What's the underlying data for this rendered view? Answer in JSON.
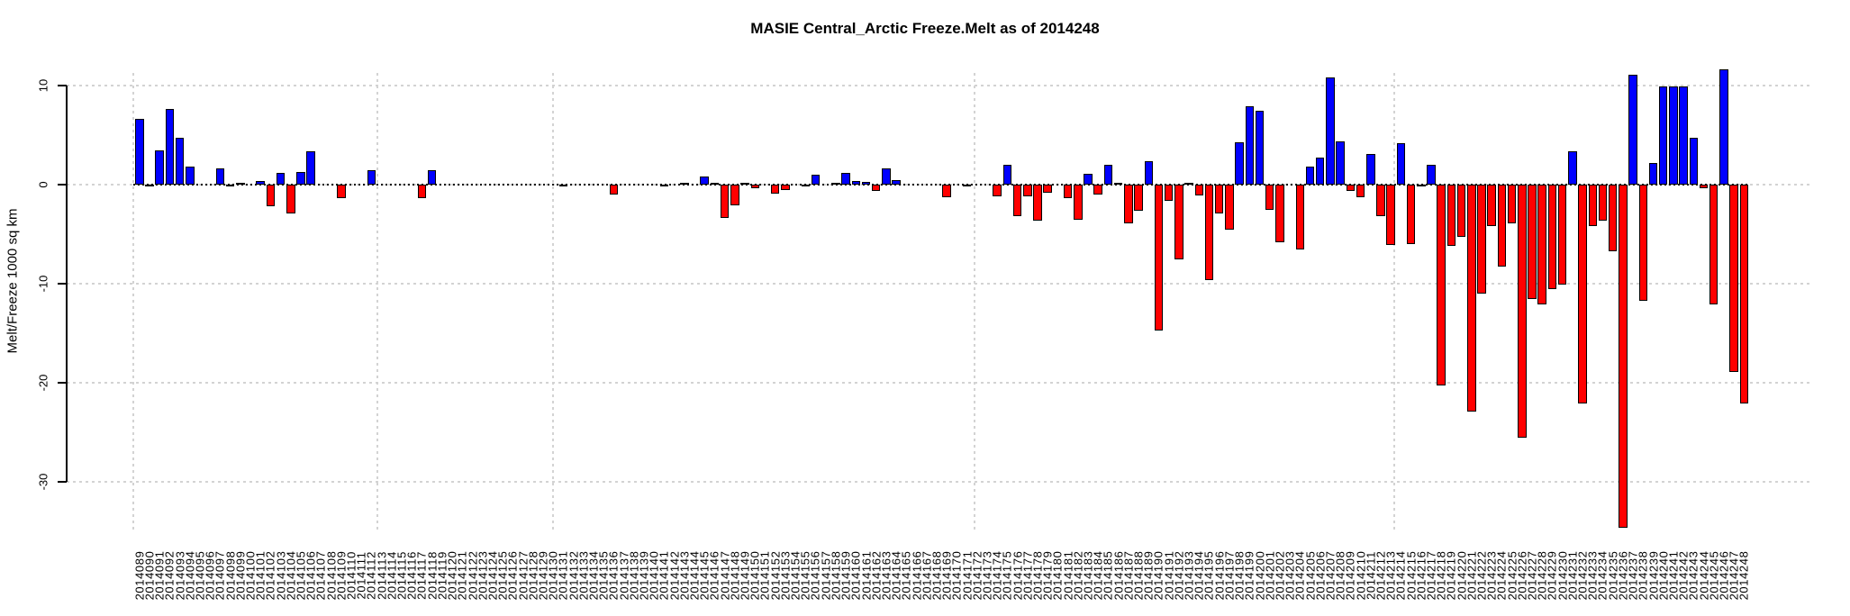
{
  "title": "MASIE Central_Arctic Freeze.Melt as of 2014248",
  "y_axis": {
    "label": "Melt/Freeze 1000 sq km",
    "ticks": [
      10,
      0,
      -10,
      -20,
      -30
    ]
  },
  "colors": {
    "positive": "#0000ff",
    "negative": "#ff0000",
    "grid": "#d3d3d3",
    "baseline": "#000000"
  },
  "chart_data": {
    "type": "bar",
    "title": "MASIE Central_Arctic Freeze.Melt as of 2014248",
    "xlabel": "",
    "ylabel": "Melt/Freeze 1000 sq km",
    "ylim": [
      -36,
      13
    ],
    "yticks": [
      10,
      0,
      -10,
      -20,
      -30
    ],
    "grid": true,
    "legend": "none",
    "positive_color": "#0000ff",
    "negative_color": "#ff0000",
    "categories": [
      "2014089",
      "2014090",
      "2014091",
      "2014092",
      "2014093",
      "2014094",
      "2014095",
      "2014096",
      "2014097",
      "2014098",
      "2014099",
      "2014100",
      "2014101",
      "2014102",
      "2014103",
      "2014104",
      "2014105",
      "2014106",
      "2014107",
      "2014108",
      "2014109",
      "2014110",
      "2014111",
      "2014112",
      "2014113",
      "2014114",
      "2014115",
      "2014116",
      "2014117",
      "2014118",
      "2014119",
      "2014120",
      "2014121",
      "2014122",
      "2014123",
      "2014124",
      "2014125",
      "2014126",
      "2014127",
      "2014128",
      "2014129",
      "2014130",
      "2014131",
      "2014132",
      "2014133",
      "2014134",
      "2014135",
      "2014136",
      "2014137",
      "2014138",
      "2014139",
      "2014140",
      "2014141",
      "2014142",
      "2014143",
      "2014144",
      "2014145",
      "2014146",
      "2014147",
      "2014148",
      "2014149",
      "2014150",
      "2014151",
      "2014152",
      "2014153",
      "2014154",
      "2014155",
      "2014156",
      "2014157",
      "2014158",
      "2014159",
      "2014160",
      "2014161",
      "2014162",
      "2014163",
      "2014164",
      "2014165",
      "2014166",
      "2014167",
      "2014168",
      "2014169",
      "2014170",
      "2014171",
      "2014172",
      "2014173",
      "2014174",
      "2014175",
      "2014176",
      "2014177",
      "2014178",
      "2014179",
      "2014180",
      "2014181",
      "2014182",
      "2014183",
      "2014184",
      "2014185",
      "2014186",
      "2014187",
      "2014188",
      "2014189",
      "2014190",
      "2014191",
      "2014192",
      "2014193",
      "2014194",
      "2014195",
      "2014196",
      "2014197",
      "2014198",
      "2014199",
      "2014200",
      "2014201",
      "2014202",
      "2014203",
      "2014204",
      "2014205",
      "2014206",
      "2014207",
      "2014208",
      "2014209",
      "2014210",
      "2014211",
      "2014212",
      "2014213",
      "2014214",
      "2014215",
      "2014216",
      "2014217",
      "2014218",
      "2014219",
      "2014220",
      "2014221",
      "2014222",
      "2014223",
      "2014224",
      "2014225",
      "2014226",
      "2014227",
      "2014228",
      "2014229",
      "2014230",
      "2014231",
      "2014232",
      "2014233",
      "2014234",
      "2014235",
      "2014236",
      "2014237",
      "2014238",
      "2014239",
      "2014240",
      "2014241",
      "2014242",
      "2014243",
      "2014244",
      "2014245",
      "2014246",
      "2014247",
      "2014248"
    ],
    "values": [
      6.6,
      -0.2,
      3.5,
      7.6,
      4.7,
      1.8,
      0,
      0,
      1.6,
      -0.1,
      0.1,
      0,
      0.4,
      -2.2,
      1.2,
      -2.9,
      1.3,
      3.4,
      0,
      0,
      -1.4,
      0,
      0,
      1.5,
      0,
      0,
      0,
      0,
      -1.4,
      1.5,
      0,
      0,
      0,
      0,
      0,
      0,
      0,
      0,
      0,
      0,
      0,
      0,
      -0.2,
      0,
      0,
      0,
      0,
      -1.0,
      0,
      0,
      0,
      0,
      -0.2,
      0,
      0.1,
      0,
      0.8,
      0.1,
      -3.4,
      -2.1,
      0.2,
      -0.4,
      0,
      -0.9,
      -0.5,
      0,
      -0.1,
      1.0,
      0,
      0.1,
      1.2,
      0.4,
      0.3,
      -0.6,
      1.6,
      0.5,
      0,
      0,
      0,
      0,
      -1.3,
      0,
      -0.2,
      0,
      0,
      -1.2,
      2.0,
      -3.2,
      -1.2,
      -3.6,
      -0.8,
      0,
      -1.4,
      -3.5,
      1.1,
      -1.0,
      2.0,
      0.2,
      -3.9,
      -2.6,
      2.4,
      -14.7,
      -1.6,
      -7.5,
      0.2,
      -1.1,
      -9.6,
      -2.9,
      -4.5,
      4.3,
      7.9,
      7.5,
      -2.5,
      -5.8,
      0,
      -6.5,
      1.8,
      2.7,
      10.8,
      4.4,
      -0.6,
      -1.3,
      3.1,
      -3.2,
      -6.1,
      4.2,
      -6.0,
      -0.2,
      2.0,
      -20.3,
      -6.2,
      -5.3,
      -22.9,
      -11.0,
      -4.2,
      -8.3,
      -3.9,
      -25.5,
      -11.5,
      -12.1,
      -10.5,
      -10.1,
      3.4,
      -22.1,
      -4.2,
      -3.6,
      -6.7,
      -34.6,
      11.1,
      -11.7,
      2.2,
      9.9,
      9.9,
      9.9,
      4.7,
      -0.4,
      -12.1,
      11.6,
      -18.9,
      -22.1
    ]
  }
}
